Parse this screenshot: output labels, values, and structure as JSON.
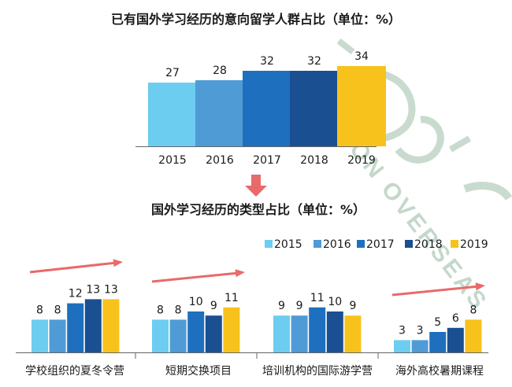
{
  "chart_data": [
    {
      "type": "bar",
      "title": "已有国外学习经历的意向留学人群占比（单位：%）",
      "categories": [
        "2015",
        "2016",
        "2017",
        "2018",
        "2019"
      ],
      "values": [
        27,
        28,
        32,
        32,
        34
      ],
      "colors": [
        "#6CCDF0",
        "#4F9BD6",
        "#1F6FBF",
        "#1A4F91",
        "#F8C21C"
      ],
      "ylim": [
        0,
        36
      ],
      "grid": false,
      "legend": false
    },
    {
      "type": "bar",
      "title": "国外学习经历的类型占比（单位：%）",
      "categories": [
        "学校组织的夏冬令营",
        "短期交换项目",
        "培训机构的国际游学营",
        "海外高校暑期课程"
      ],
      "series": [
        {
          "name": "2015",
          "values": [
            8,
            8,
            9,
            3
          ],
          "color": "#6CCDF0"
        },
        {
          "name": "2016",
          "values": [
            8,
            8,
            9,
            3
          ],
          "color": "#4F9BD6"
        },
        {
          "name": "2017",
          "values": [
            12,
            10,
            11,
            5
          ],
          "color": "#1F6FBF"
        },
        {
          "name": "2018",
          "values": [
            13,
            9,
            10,
            6
          ],
          "color": "#1A4F91"
        },
        {
          "name": "2019",
          "values": [
            13,
            11,
            9,
            8
          ],
          "color": "#F8C21C"
        }
      ],
      "ylim": [
        0,
        14
      ],
      "grid": false,
      "legend": "top-right"
    }
  ],
  "watermark": {
    "text": "VISION OVERSEAS"
  },
  "colors": {
    "trend_arrow": "#E86A6A",
    "axis": "#666666"
  }
}
